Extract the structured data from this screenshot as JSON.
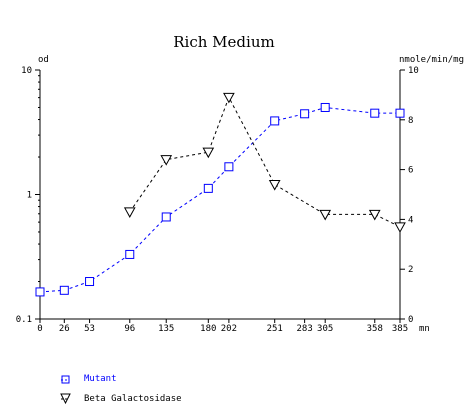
{
  "chart_data": {
    "type": "line",
    "title": "Rich Medium",
    "left_axis_unit": "od",
    "right_axis_unit": "nmole/min/mg",
    "x_unit": "mn",
    "x_ticks": [
      0,
      26,
      53,
      96,
      135,
      180,
      202,
      251,
      283,
      305,
      358,
      385
    ],
    "xlim": [
      0,
      385
    ],
    "y_left": {
      "scale": "log",
      "lim": [
        0.1,
        10
      ],
      "ticks": [
        0.1,
        1,
        10
      ],
      "tick_labels": [
        "0.1",
        "1",
        "10"
      ]
    },
    "y_right": {
      "scale": "linear",
      "lim": [
        0,
        10
      ],
      "ticks": [
        0,
        2,
        4,
        6,
        8,
        10
      ]
    },
    "legend_position": "bottom-left",
    "series": [
      {
        "name": "Mutant",
        "axis": "left",
        "marker": "square",
        "color": "#0000ff",
        "x": [
          0,
          26,
          53,
          96,
          135,
          180,
          202,
          251,
          283,
          305,
          358,
          385
        ],
        "y": [
          0.165,
          0.17,
          0.2,
          0.33,
          0.66,
          1.12,
          1.67,
          3.9,
          4.45,
          5.0,
          4.5,
          4.5
        ]
      },
      {
        "name": "Beta Galactosidase",
        "axis": "right",
        "marker": "triangle-down",
        "color": "#000000",
        "x": [
          96,
          135,
          180,
          202,
          251,
          305,
          358,
          385
        ],
        "y": [
          4.3,
          6.4,
          6.7,
          8.9,
          5.4,
          4.2,
          4.2,
          3.7
        ]
      }
    ]
  }
}
